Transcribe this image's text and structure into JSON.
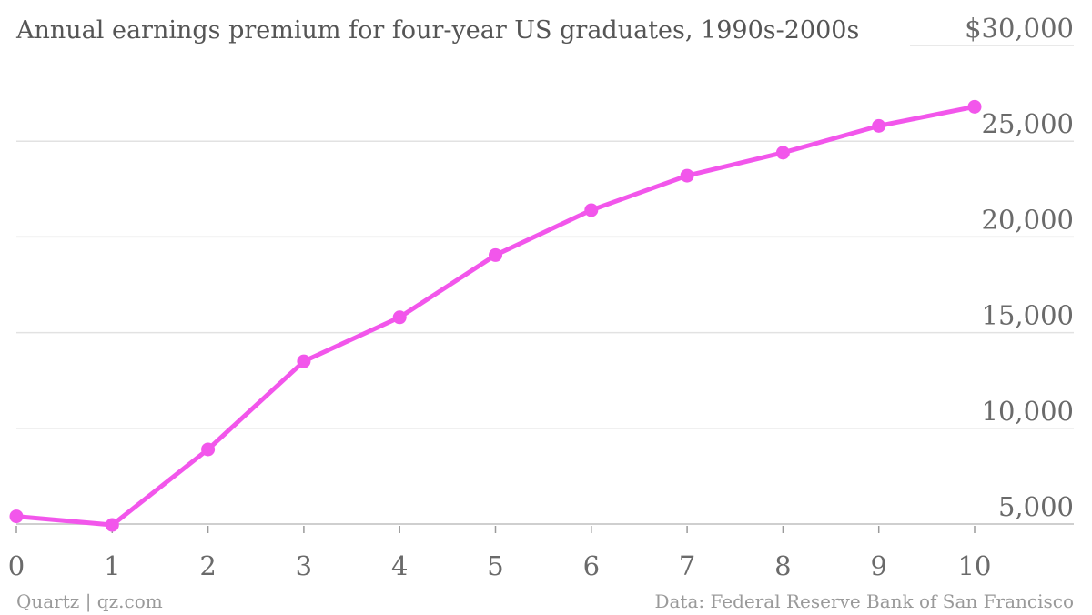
{
  "chart_data": {
    "type": "line",
    "title": "Annual earnings premium for four-year US graduates, 1990s-2000s",
    "xlabel": "",
    "ylabel": "",
    "x": [
      0,
      1,
      2,
      3,
      4,
      5,
      6,
      7,
      8,
      9,
      10
    ],
    "series": [
      {
        "values": [
          5400,
          4950,
          8900,
          13500,
          15800,
          19050,
          21400,
          23200,
          24400,
          25800,
          26800
        ]
      }
    ],
    "xlim": [
      0,
      10
    ],
    "ylim": [
      5000,
      30000
    ],
    "x_ticks": [
      "0",
      "1",
      "2",
      "3",
      "4",
      "5",
      "6",
      "7",
      "8",
      "9",
      "10"
    ],
    "y_ticks": [
      {
        "value": 5000,
        "label": "5,000"
      },
      {
        "value": 10000,
        "label": "10,000"
      },
      {
        "value": 15000,
        "label": "15,000"
      },
      {
        "value": 20000,
        "label": "20,000"
      },
      {
        "value": 25000,
        "label": "25,000"
      },
      {
        "value": 30000,
        "label": "$30,000"
      }
    ],
    "grid": true,
    "y_axis_side": "right",
    "line_color": "#f256eb",
    "source_left": "Quartz | qz.com",
    "source_right": "Data: Federal Reserve Bank of San Francisco"
  }
}
